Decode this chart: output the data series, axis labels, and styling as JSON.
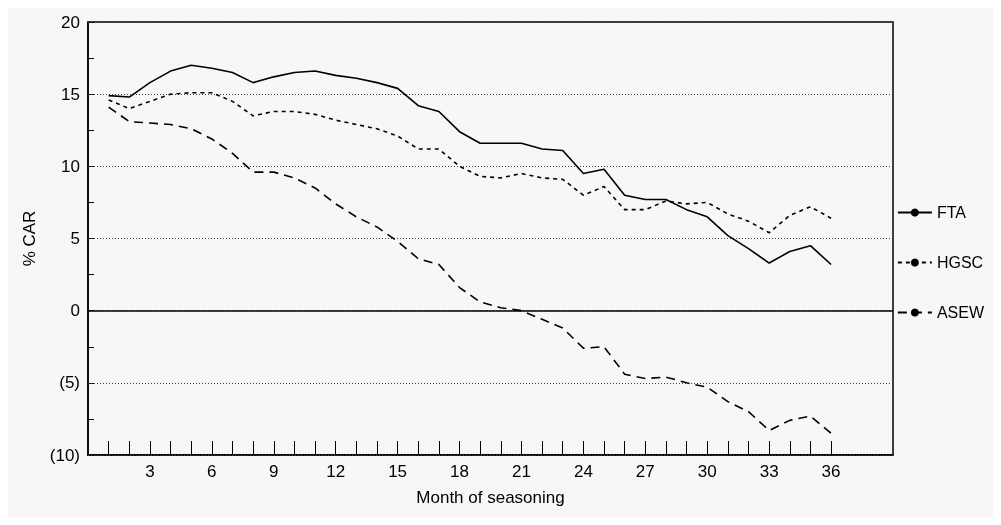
{
  "chart_data": {
    "type": "line",
    "xlabel": "Month of seasoning",
    "ylabel": "% CAR",
    "x": [
      1,
      2,
      3,
      4,
      5,
      6,
      7,
      8,
      9,
      10,
      11,
      12,
      13,
      14,
      15,
      16,
      17,
      18,
      19,
      20,
      21,
      22,
      23,
      24,
      25,
      26,
      27,
      28,
      29,
      30,
      31,
      32,
      33,
      34,
      35,
      36
    ],
    "series": [
      {
        "name": "FTA",
        "color": "#000000",
        "line_style": "solid",
        "values": [
          14.9,
          14.8,
          15.8,
          16.6,
          17.0,
          16.8,
          16.5,
          15.8,
          16.2,
          16.5,
          16.6,
          16.3,
          16.1,
          15.8,
          15.4,
          14.2,
          13.8,
          12.4,
          11.6,
          11.6,
          11.6,
          11.2,
          11.1,
          9.5,
          9.8,
          8.0,
          7.7,
          7.7,
          7.0,
          6.5,
          5.2,
          4.3,
          3.3,
          4.1,
          4.5,
          3.2
        ]
      },
      {
        "name": "HGSC",
        "color": "#000000",
        "line_style": "dotted",
        "values": [
          14.6,
          14.0,
          14.5,
          15.0,
          15.1,
          15.1,
          14.5,
          13.5,
          13.8,
          13.8,
          13.6,
          13.2,
          12.9,
          12.6,
          12.1,
          11.2,
          11.2,
          10.0,
          9.3,
          9.2,
          9.5,
          9.2,
          9.1,
          8.0,
          8.6,
          7.0,
          7.0,
          7.6,
          7.4,
          7.5,
          6.7,
          6.2,
          5.4,
          6.6,
          7.2,
          6.4
        ]
      },
      {
        "name": "ASEW",
        "color": "#000000",
        "line_style": "dashed",
        "values": [
          14.1,
          13.1,
          13.0,
          12.9,
          12.6,
          11.9,
          10.9,
          9.6,
          9.6,
          9.2,
          8.5,
          7.4,
          6.5,
          5.8,
          4.8,
          3.6,
          3.2,
          1.6,
          0.6,
          0.2,
          0.0,
          -0.6,
          -1.2,
          -2.6,
          -2.5,
          -4.4,
          -4.7,
          -4.6,
          -5.0,
          -5.3,
          -6.3,
          -7.0,
          -8.3,
          -7.6,
          -7.3,
          -8.5
        ]
      }
    ],
    "xlim": [
      0,
      39
    ],
    "xticks": [
      {
        "value": 1,
        "label": null
      },
      {
        "value": 2,
        "label": null
      },
      3,
      {
        "value": 4,
        "label": null
      },
      {
        "value": 5,
        "label": null
      },
      6,
      {
        "value": 7,
        "label": null
      },
      {
        "value": 8,
        "label": null
      },
      9,
      {
        "value": 10,
        "label": null
      },
      {
        "value": 11,
        "label": null
      },
      12,
      {
        "value": 13,
        "label": null
      },
      {
        "value": 14,
        "label": null
      },
      15,
      {
        "value": 16,
        "label": null
      },
      {
        "value": 17,
        "label": null
      },
      18,
      {
        "value": 19,
        "label": null
      },
      {
        "value": 20,
        "label": null
      },
      21,
      {
        "value": 22,
        "label": null
      },
      {
        "value": 23,
        "label": null
      },
      24,
      {
        "value": 25,
        "label": null
      },
      {
        "value": 26,
        "label": null
      },
      27,
      {
        "value": 28,
        "label": null
      },
      {
        "value": 29,
        "label": null
      },
      30,
      {
        "value": 31,
        "label": null
      },
      {
        "value": 32,
        "label": null
      },
      33,
      {
        "value": 34,
        "label": null
      },
      {
        "value": 35,
        "label": null
      },
      36
    ],
    "ylim": [
      -10,
      20
    ],
    "yticks": [
      {
        "value": -10,
        "label": "(10)"
      },
      {
        "value": -7.5,
        "label": null
      },
      {
        "value": -5,
        "label": "(5)"
      },
      {
        "value": -2.5,
        "label": null
      },
      0,
      {
        "value": 2.5,
        "label": null
      },
      5,
      {
        "value": 7.5,
        "label": null
      },
      10,
      {
        "value": 12.5,
        "label": null
      },
      15,
      {
        "value": 17.5,
        "label": null
      },
      20
    ],
    "ref_lines": [
      {
        "axis": "y",
        "value": 0,
        "line_style": "solid",
        "color": "#000000"
      }
    ],
    "grid": "y",
    "legend": "right",
    "marker": "none"
  }
}
